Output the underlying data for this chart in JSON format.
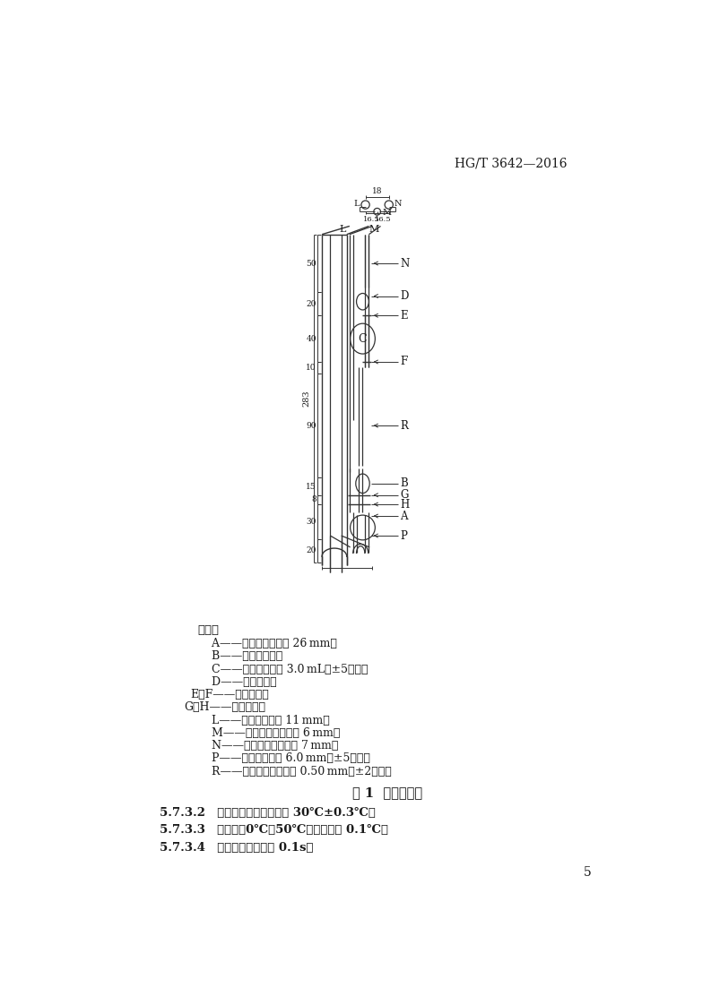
{
  "page_header": "HG/T 3642—2016",
  "figure_caption": "图 1  乌氏黏度计",
  "page_number": "5",
  "legend_title": "说明：",
  "legend_items": [
    [
      "    A——底部贮球，外径 26 mm；",
      0
    ],
    [
      "    B——悬浮水平球；",
      0
    ],
    [
      "    C——计时球，容积 3.0 mL（±5％）；",
      0
    ],
    [
      "    D——上部贮球；",
      0
    ],
    [
      "E、F——计时标线；",
      -10
    ],
    [
      "G、H——充装标线；",
      -20
    ],
    [
      "    L——架置管，外径 11 mm；",
      0
    ],
    [
      "    M——下部出口管，外径 6 mm；",
      0
    ],
    [
      "    N——上部出口管，外径 7 mm；",
      0
    ],
    [
      "    P——连接管，内径 6.0 mm（±5％）；",
      0
    ],
    [
      "    R——工作毛细管，内径 0.50 mm（±2％）。",
      0
    ]
  ],
  "section_texts": [
    "5.7.3.2 恒温水浴：温度控制在 30℃±0.3℃。",
    "5.7.3.3 温度计：0℃～50℃，分度值为 0.1℃。",
    "5.7.3.4 秒表：最小分度值 0.1s。"
  ],
  "bg_color": "#ffffff",
  "line_color": "#333333",
  "text_color": "#1a1a1a"
}
